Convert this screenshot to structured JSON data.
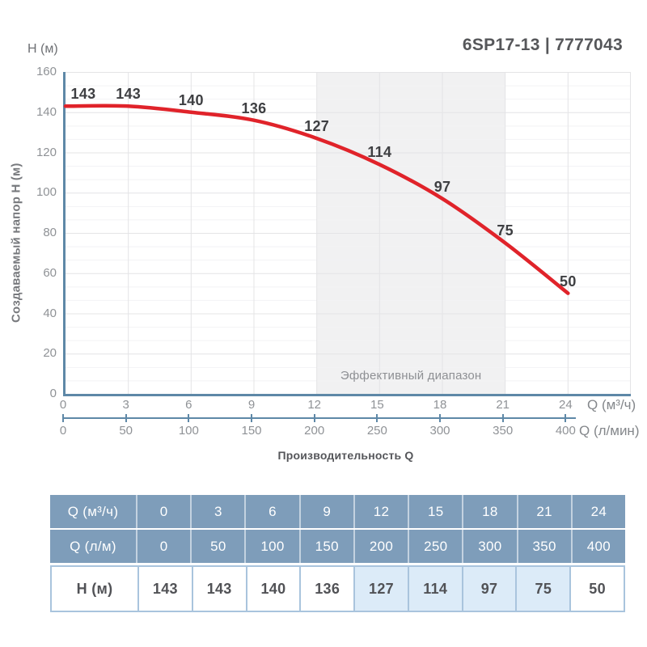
{
  "header": {
    "y_axis_unit": "H (м)",
    "title": "6SP17-13 | 7777043"
  },
  "chart_data": {
    "type": "line",
    "title": "6SP17-13 | 7777043",
    "x": [
      0,
      3,
      6,
      9,
      12,
      15,
      18,
      21,
      24
    ],
    "series": [
      {
        "name": "H",
        "values": [
          143,
          143,
          140,
          136,
          127,
          114,
          97,
          75,
          50
        ]
      }
    ],
    "point_labels": [
      "143",
      "143",
      "140",
      "136",
      "127",
      "114",
      "97",
      "75",
      "50"
    ],
    "ylabel": "Создаваемый напор H (м)",
    "xlabel": "Производительность Q",
    "ylim": [
      0,
      160
    ],
    "xlim": [
      0,
      27
    ],
    "y_ticks": [
      0,
      20,
      40,
      60,
      80,
      100,
      120,
      140,
      160
    ],
    "x_axis_1": {
      "unit": "Q (м³/ч)",
      "ticks": [
        "0",
        "3",
        "6",
        "9",
        "12",
        "15",
        "18",
        "21",
        "24"
      ]
    },
    "x_axis_2": {
      "unit": "Q (л/мин)",
      "ticks": [
        "0",
        "50",
        "100",
        "150",
        "200",
        "250",
        "300",
        "350",
        "400"
      ]
    },
    "effective_range": {
      "from": 12,
      "to": 21,
      "label": "Эффективный диапазон"
    },
    "grid": true,
    "legend": "none"
  },
  "table": {
    "rows": [
      {
        "header": "Q (м³/ч)",
        "values": [
          "0",
          "3",
          "6",
          "9",
          "12",
          "15",
          "18",
          "21",
          "24"
        ],
        "style": "blue"
      },
      {
        "header": "Q (л/м)",
        "values": [
          "0",
          "50",
          "100",
          "150",
          "200",
          "250",
          "300",
          "350",
          "400"
        ],
        "style": "blue"
      },
      {
        "header": "H (м)",
        "values": [
          "143",
          "143",
          "140",
          "136",
          "127",
          "114",
          "97",
          "75",
          "50"
        ],
        "style": "white",
        "highlight_cols": [
          4,
          5,
          6,
          7
        ]
      }
    ]
  },
  "colors": {
    "curve": "#e0232a",
    "axis": "#5e88a7",
    "grid_major": "#e4e4e6",
    "grid_minor": "#f2f2f4",
    "band": "#f1f1f2",
    "table_bg": "#7e9dba",
    "table_border": "#a9c4dd",
    "table_highlight": "#dcebf8"
  }
}
